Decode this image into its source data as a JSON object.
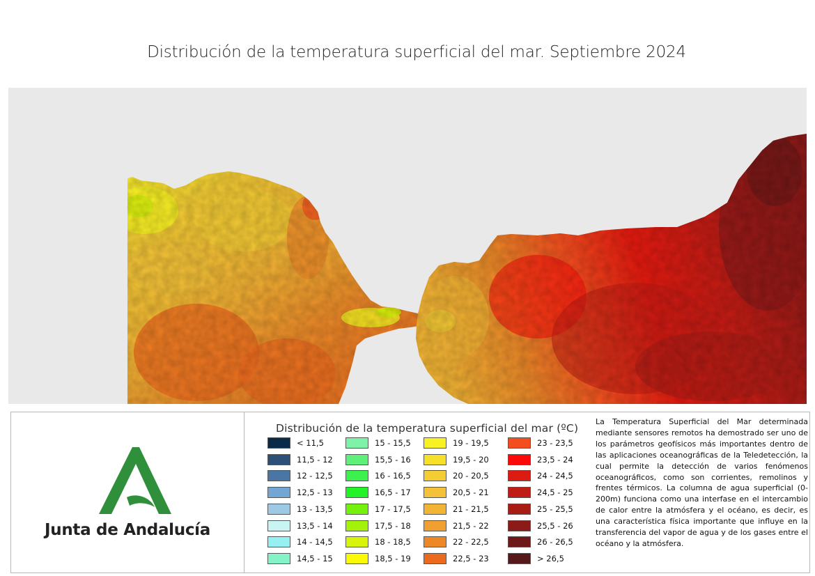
{
  "title": "Distribución de la temperatura superficial del mar. Septiembre 2024",
  "map": {
    "background_color": "#e9e9e9",
    "description": "Sea surface temperature raster of the Strait of Gibraltar area: Atlantic side in oranges/yellows, Alboran Sea side in reds"
  },
  "logo": {
    "name": "Junta de Andalucía",
    "brand_color": "#2f8f3a"
  },
  "legend": {
    "title": "Distribución de la temperatura superficial del mar (ºC)",
    "items": [
      {
        "label": "< 11,5",
        "color": "#0a2a4a"
      },
      {
        "label": "11,5 - 12",
        "color": "#2c5078"
      },
      {
        "label": "12 - 12,5",
        "color": "#4a76a6"
      },
      {
        "label": "12,5 - 13",
        "color": "#74a6d4"
      },
      {
        "label": "13 - 13,5",
        "color": "#9cc9e4"
      },
      {
        "label": "13,5 - 14",
        "color": "#c8f4f4"
      },
      {
        "label": "14 - 14,5",
        "color": "#96f0f2"
      },
      {
        "label": "14,5 - 15",
        "color": "#86f2c8"
      },
      {
        "label": "15 - 15,5",
        "color": "#7df2a8"
      },
      {
        "label": "15,5 - 16",
        "color": "#5ef07a"
      },
      {
        "label": "16 - 16,5",
        "color": "#3cf04e"
      },
      {
        "label": "16,5 - 17",
        "color": "#22f226"
      },
      {
        "label": "17 - 17,5",
        "color": "#74f20e"
      },
      {
        "label": "17,5 - 18",
        "color": "#a4f20a"
      },
      {
        "label": "18 - 18,5",
        "color": "#d8f40a"
      },
      {
        "label": "18,5 - 19",
        "color": "#fafa06"
      },
      {
        "label": "19 - 19,5",
        "color": "#f8f222"
      },
      {
        "label": "19,5 - 20",
        "color": "#f6e02a"
      },
      {
        "label": "20 - 20,5",
        "color": "#f4cd34"
      },
      {
        "label": "20,5 - 21",
        "color": "#f4c23a"
      },
      {
        "label": "21 - 21,5",
        "color": "#f2b434"
      },
      {
        "label": "21,5 - 22",
        "color": "#f0a030"
      },
      {
        "label": "22 - 22,5",
        "color": "#ec8828"
      },
      {
        "label": "22,5 - 23",
        "color": "#ec6a1e"
      },
      {
        "label": "23 - 23,5",
        "color": "#f44e1e"
      },
      {
        "label": "23,5 - 24",
        "color": "#fc0a0a"
      },
      {
        "label": "24 - 24,5",
        "color": "#dc1c12"
      },
      {
        "label": "24,5 - 25",
        "color": "#be1c14"
      },
      {
        "label": "25 - 25,5",
        "color": "#a81c16"
      },
      {
        "label": "25,5 - 26",
        "color": "#8c1a18"
      },
      {
        "label": "26 - 26,5",
        "color": "#6e1818"
      },
      {
        "label": "> 26,5",
        "color": "#561818"
      }
    ]
  },
  "description": "La Temperatura Superficial del Mar determinada mediante sensores remotos ha demostrado ser uno de los parámetros geofísicos más importantes dentro de las aplicaciones oceanográficas de la Teledetección, la cual permite la detección de varios fenómenos oceanográficos, como son corrientes, remolinos y frentes térmicos. La columna de agua superficial (0-200m) funciona como una interfase en el intercambio de calor entre la atmósfera y el océano, es decir, es una característica física importante que influye en la transferencia del vapor de agua y de los gases entre el océano y la atmósfera."
}
